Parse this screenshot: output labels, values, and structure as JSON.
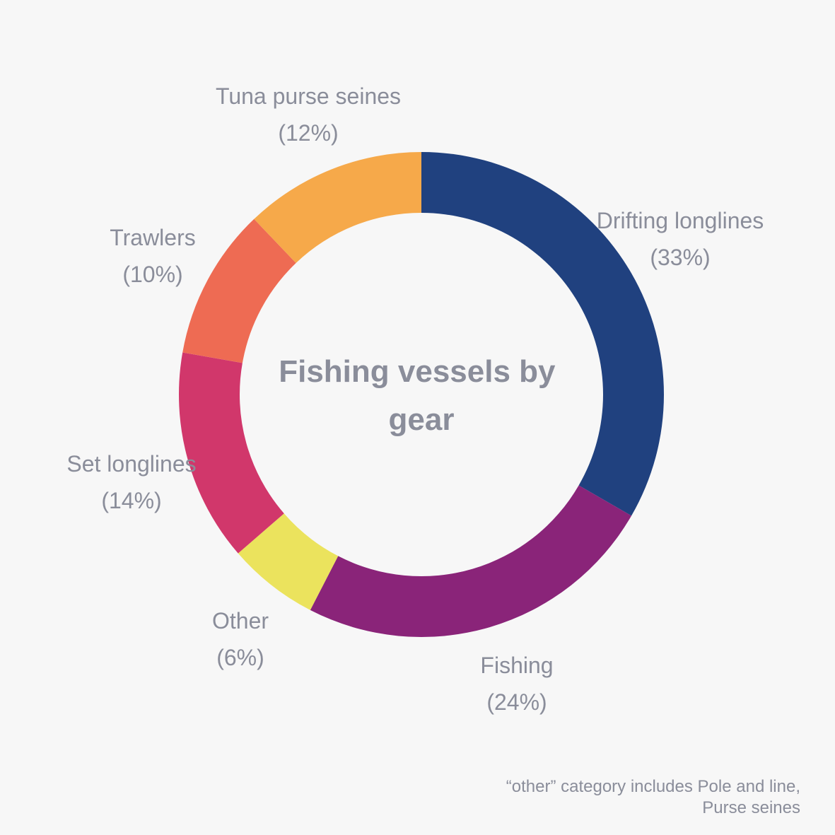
{
  "chart_data": {
    "type": "pie",
    "title": "Fishing vessels by gear",
    "slices": [
      {
        "label": "Drifting longlines",
        "value": 33,
        "pct_label": "(33%)",
        "color": "#20417f"
      },
      {
        "label": "Fishing",
        "value": 24,
        "pct_label": "(24%)",
        "color": "#8a2479"
      },
      {
        "label": "Other",
        "value": 6,
        "pct_label": "(6%)",
        "color": "#ebe35d"
      },
      {
        "label": "Set longlines",
        "value": 14,
        "pct_label": "(14%)",
        "color": "#d1376b"
      },
      {
        "label": "Trawlers",
        "value": 10,
        "pct_label": "(10%)",
        "color": "#ee6b53"
      },
      {
        "label": "Tuna purse seines",
        "value": 12,
        "pct_label": "(12%)",
        "color": "#f6a94a"
      }
    ],
    "footnote": "“other” category includes Pole and line, Purse seines"
  }
}
